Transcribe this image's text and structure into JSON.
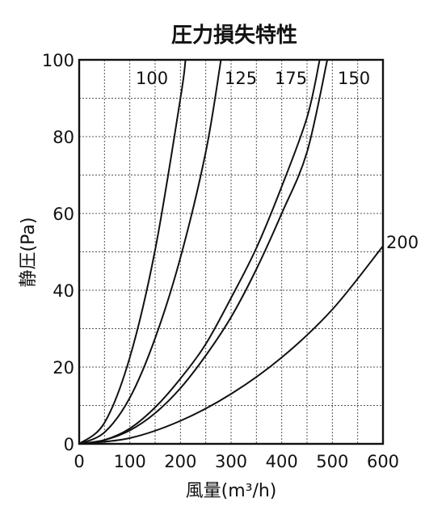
{
  "chart_data": {
    "type": "line",
    "title": "圧力損失特性",
    "xlabel": "風量(m³/h)",
    "ylabel": "静圧(Pa)",
    "xlim": [
      0,
      600
    ],
    "ylim": [
      0,
      100
    ],
    "x_ticks": [
      "0",
      "100",
      "200",
      "300",
      "400",
      "500",
      "600"
    ],
    "y_ticks": [
      "0",
      "20",
      "40",
      "60",
      "80",
      "100"
    ],
    "grid": true,
    "series": [
      {
        "name": "100",
        "x": [
          0,
          50,
          100,
          150,
          200,
          210
        ],
        "y": [
          0,
          5.5,
          22.5,
          50.5,
          90,
          100
        ]
      },
      {
        "name": "125",
        "x": [
          0,
          50,
          100,
          150,
          200,
          250,
          280
        ],
        "y": [
          0,
          3,
          12,
          27.5,
          48.5,
          76,
          100
        ]
      },
      {
        "name": "175",
        "x": [
          0,
          50,
          100,
          150,
          200,
          250,
          300,
          350,
          400,
          450,
          475
        ],
        "y": [
          0,
          1,
          4,
          9.5,
          17,
          26,
          38,
          51,
          67,
          85,
          100
        ]
      },
      {
        "name": "150",
        "x": [
          0,
          50,
          100,
          150,
          200,
          250,
          300,
          350,
          400,
          450,
          490
        ],
        "y": [
          0,
          1,
          3.5,
          8,
          14.5,
          23,
          33,
          45.5,
          60,
          76,
          100
        ]
      },
      {
        "name": "200",
        "x": [
          0,
          100,
          200,
          300,
          400,
          500,
          600
        ],
        "y": [
          0,
          1.5,
          6,
          13,
          22.5,
          35,
          51.5
        ]
      }
    ]
  }
}
